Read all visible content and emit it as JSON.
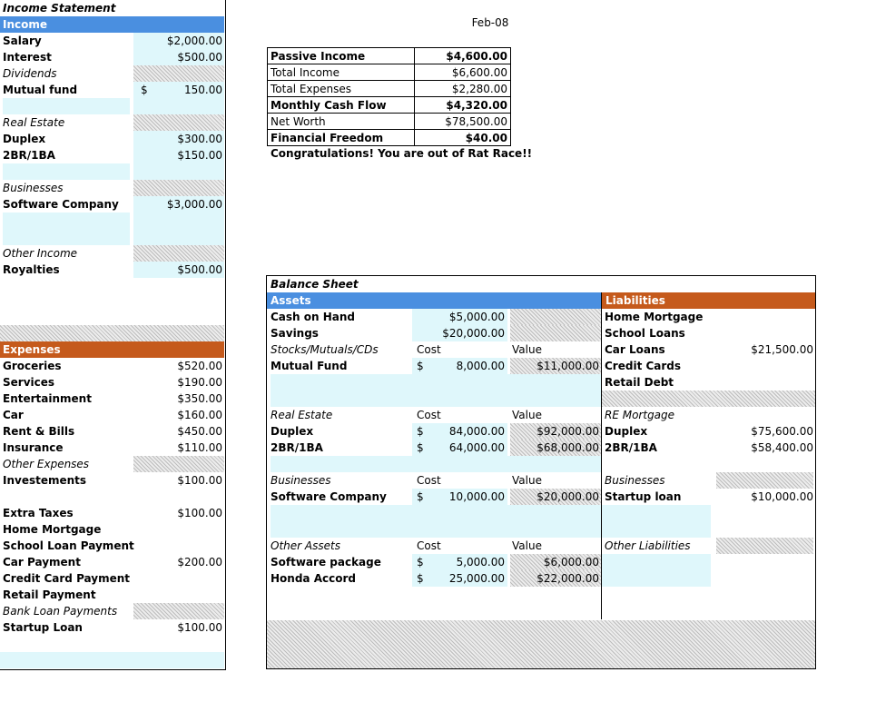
{
  "date_label": "Feb-08",
  "income_statement": {
    "title": "Income Statement",
    "income_header": "Income",
    "rows": [
      {
        "label": "Salary",
        "style": "bold",
        "dollar": "",
        "value": "$2,000.00"
      },
      {
        "label": "Interest",
        "style": "bold",
        "dollar": "",
        "value": "$500.00"
      },
      {
        "label": "Dividends",
        "style": "italic",
        "dollar": "",
        "value": ""
      },
      {
        "label": "Mutual fund",
        "style": "bold",
        "dollar": "$",
        "value": "150.00"
      },
      {
        "label": "",
        "style": "",
        "dollar": "",
        "value": ""
      },
      {
        "label": "Real Estate",
        "style": "italic",
        "dollar": "",
        "value": ""
      },
      {
        "label": "Duplex",
        "style": "bold",
        "dollar": "",
        "value": "$300.00"
      },
      {
        "label": "2BR/1BA",
        "style": "bold",
        "dollar": "",
        "value": "$150.00"
      },
      {
        "label": "",
        "style": "",
        "dollar": "",
        "value": ""
      },
      {
        "label": "Businesses",
        "style": "italic",
        "dollar": "",
        "value": ""
      },
      {
        "label": "Software Company",
        "style": "bold",
        "dollar": "",
        "value": "$3,000.00"
      },
      {
        "label": "",
        "style": "",
        "dollar": "",
        "value": ""
      },
      {
        "label": "",
        "style": "",
        "dollar": "",
        "value": ""
      },
      {
        "label": "Other Income",
        "style": "italic",
        "dollar": "",
        "value": ""
      },
      {
        "label": "Royalties",
        "style": "bold",
        "dollar": "",
        "value": "$500.00"
      }
    ],
    "expenses_header": "Expenses",
    "expense_rows": [
      {
        "label": "Groceries",
        "style": "bold",
        "value": "$520.00"
      },
      {
        "label": "Services",
        "style": "bold",
        "value": "$190.00"
      },
      {
        "label": "Entertainment",
        "style": "bold",
        "value": "$350.00"
      },
      {
        "label": "Car",
        "style": "bold",
        "value": "$160.00"
      },
      {
        "label": "Rent & Bills",
        "style": "bold",
        "value": "$450.00"
      },
      {
        "label": "Insurance",
        "style": "bold",
        "value": "$110.00"
      },
      {
        "label": "Other Expenses",
        "style": "italic",
        "value": ""
      },
      {
        "label": "Investements",
        "style": "bold",
        "value": "$100.00"
      },
      {
        "label": "",
        "style": "",
        "value": ""
      },
      {
        "label": "Extra Taxes",
        "style": "bold",
        "value": "$100.00"
      },
      {
        "label": "Home Mortgage",
        "style": "bold",
        "value": ""
      },
      {
        "label": "School Loan Payment",
        "style": "bold",
        "value": ""
      },
      {
        "label": "Car Payment",
        "style": "bold",
        "value": "$200.00"
      },
      {
        "label": "Credit Card Payment",
        "style": "bold",
        "value": ""
      },
      {
        "label": "Retail Payment",
        "style": "bold",
        "value": ""
      },
      {
        "label": "Bank Loan Payments",
        "style": "italic",
        "value": ""
      },
      {
        "label": "Startup Loan",
        "style": "bold",
        "value": "$100.00"
      }
    ]
  },
  "summary": [
    {
      "label": "Passive Income",
      "value": "$4,600.00",
      "bold": true
    },
    {
      "label": "Total Income",
      "value": "$6,600.00",
      "bold": false
    },
    {
      "label": "Total Expenses",
      "value": "$2,280.00",
      "bold": false
    },
    {
      "label": "Monthly Cash Flow",
      "value": "$4,320.00",
      "bold": true
    },
    {
      "label": "Net Worth",
      "value": "$78,500.00",
      "bold": false
    },
    {
      "label": "Financial Freedom",
      "value": "$40.00",
      "bold": true
    }
  ],
  "congrats": "Congratulations! You are out of Rat Race!!",
  "balance_sheet": {
    "title": "Balance Sheet",
    "assets_header": "Assets",
    "liabilities_header": "Liabilities",
    "rows": [
      {
        "a_label": "Cash on Hand",
        "a_style": "bold",
        "a_cost_dollar": "",
        "a_cost": "$5,000.00",
        "a_value": "",
        "l_label": "Home Mortgage",
        "l_style": "bold",
        "l_value": ""
      },
      {
        "a_label": "Savings",
        "a_style": "bold",
        "a_cost_dollar": "",
        "a_cost": "$20,000.00",
        "a_value": "",
        "l_label": "School Loans",
        "l_style": "bold",
        "l_value": ""
      },
      {
        "a_label": "Stocks/Mutuals/CDs",
        "a_style": "italic",
        "a_cost_dollar": "Cost",
        "a_cost": "",
        "a_value": "Value",
        "l_label": "Car Loans",
        "l_style": "bold",
        "l_value": "$21,500.00"
      },
      {
        "a_label": "Mutual Fund",
        "a_style": "bold",
        "a_cost_dollar": "$",
        "a_cost": "8,000.00",
        "a_value": "$11,000.00",
        "l_label": "Credit Cards",
        "l_style": "bold",
        "l_value": ""
      },
      {
        "a_label": "",
        "a_style": "",
        "a_cost_dollar": "",
        "a_cost": "",
        "a_value": "",
        "l_label": "Retail Debt",
        "l_style": "bold",
        "l_value": ""
      },
      {
        "a_label": "",
        "a_style": "",
        "a_cost_dollar": "",
        "a_cost": "",
        "a_value": "",
        "l_label": "",
        "l_style": "",
        "l_value": ""
      },
      {
        "a_label": "Real Estate",
        "a_style": "italic",
        "a_cost_dollar": "Cost",
        "a_cost": "",
        "a_value": "Value",
        "l_label": "RE Mortgage",
        "l_style": "italic",
        "l_value": ""
      },
      {
        "a_label": "Duplex",
        "a_style": "bold",
        "a_cost_dollar": "$",
        "a_cost": "84,000.00",
        "a_value": "$92,000.00",
        "l_label": "Duplex",
        "l_style": "bold",
        "l_value": "$75,600.00"
      },
      {
        "a_label": "2BR/1BA",
        "a_style": "bold",
        "a_cost_dollar": "$",
        "a_cost": "64,000.00",
        "a_value": "$68,000.00",
        "l_label": "2BR/1BA",
        "l_style": "bold",
        "l_value": "$58,400.00"
      },
      {
        "a_label": "",
        "a_style": "",
        "a_cost_dollar": "",
        "a_cost": "",
        "a_value": "",
        "l_label": "",
        "l_style": "",
        "l_value": ""
      },
      {
        "a_label": "Businesses",
        "a_style": "italic",
        "a_cost_dollar": "Cost",
        "a_cost": "",
        "a_value": "Value",
        "l_label": "Businesses",
        "l_style": "italic",
        "l_value": ""
      },
      {
        "a_label": "Software Company",
        "a_style": "bold",
        "a_cost_dollar": "$",
        "a_cost": "10,000.00",
        "a_value": "$20,000.00",
        "l_label": "Startup loan",
        "l_style": "bold",
        "l_value": "$10,000.00"
      },
      {
        "a_label": "",
        "a_style": "",
        "a_cost_dollar": "",
        "a_cost": "",
        "a_value": "",
        "l_label": "",
        "l_style": "",
        "l_value": ""
      },
      {
        "a_label": "",
        "a_style": "",
        "a_cost_dollar": "",
        "a_cost": "",
        "a_value": "",
        "l_label": "",
        "l_style": "",
        "l_value": ""
      },
      {
        "a_label": "Other Assets",
        "a_style": "italic",
        "a_cost_dollar": "Cost",
        "a_cost": "",
        "a_value": "Value",
        "l_label": "Other Liabilities",
        "l_style": "italic",
        "l_value": ""
      },
      {
        "a_label": "Software package",
        "a_style": "bold",
        "a_cost_dollar": "$",
        "a_cost": "5,000.00",
        "a_value": "$6,000.00",
        "l_label": "",
        "l_style": "",
        "l_value": ""
      },
      {
        "a_label": "Honda Accord",
        "a_style": "bold",
        "a_cost_dollar": "$",
        "a_cost": "25,000.00",
        "a_value": "$22,000.00",
        "l_label": "",
        "l_style": "",
        "l_value": ""
      }
    ]
  }
}
